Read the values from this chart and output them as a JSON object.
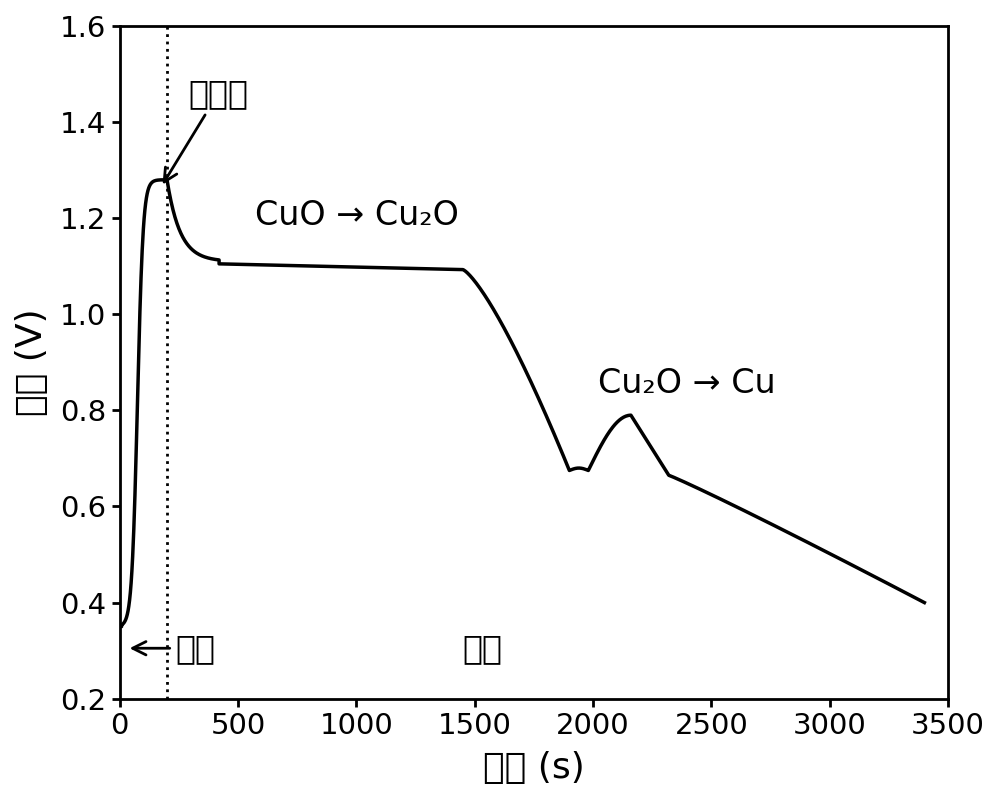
{
  "title": "",
  "xlabel": "时间 (s)",
  "ylabel": "电压 (V)",
  "xlim": [
    0,
    3500
  ],
  "ylim": [
    0.2,
    1.6
  ],
  "xticks": [
    0,
    500,
    1000,
    1500,
    2000,
    2500,
    3000,
    3500
  ],
  "yticks": [
    0.2,
    0.4,
    0.6,
    0.8,
    1.0,
    1.2,
    1.4,
    1.6
  ],
  "dotted_line_x": 200,
  "line_color": "#000000",
  "background_color": "#ffffff",
  "annotation_zichongdian": "自充电",
  "annotation_cuo_cuo2o": "CuO → Cu₂O",
  "annotation_cuo2o_cu": "Cu₂O → Cu",
  "annotation_kongqi": "空气",
  "annotation_wuyang": "无氧"
}
